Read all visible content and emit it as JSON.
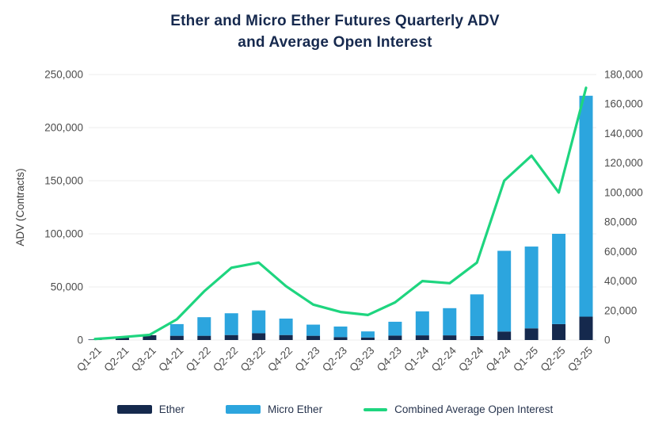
{
  "title": {
    "line1": "Ether and Micro Ether Futures Quarterly ADV",
    "line2": "and Average Open Interest"
  },
  "colors": {
    "navy": "#15294d",
    "light_blue": "#2ca5de",
    "green": "#1ed57f",
    "grid": "#ececec",
    "tick_text": "#4d4d4d",
    "title_text": "#16294e"
  },
  "legend": {
    "items": [
      {
        "label": "Ether",
        "swatch": "bar",
        "color": "#15294d"
      },
      {
        "label": "Micro Ether",
        "swatch": "bar",
        "color": "#2ca5de"
      },
      {
        "label": "Combined Average Open Interest",
        "swatch": "line",
        "color": "#1ed57f"
      }
    ]
  },
  "chart_data": {
    "type": "bar+line combo (stacked bars, dual axis)",
    "title": "Ether and Micro Ether Futures Quarterly ADV and Average Open Interest",
    "categories": [
      "Q1-21",
      "Q2-21",
      "Q3-21",
      "Q4-21",
      "Q1-22",
      "Q2-22",
      "Q3-22",
      "Q4-22",
      "Q1-23",
      "Q2-23",
      "Q3-23",
      "Q4-23",
      "Q1-24",
      "Q2-24",
      "Q3-24",
      "Q4-24",
      "Q1-25",
      "Q2-25",
      "Q3-25"
    ],
    "left_axis": {
      "label": "ADV (Contracts)",
      "min": 0,
      "max": 250000,
      "step": 50000,
      "ticks": [
        "0",
        "50,000",
        "100,000",
        "150,000",
        "200,000",
        "250,000"
      ]
    },
    "right_axis": {
      "min": 0,
      "max": 180000,
      "step": 20000,
      "ticks": [
        "0",
        "20,000",
        "40,000",
        "60,000",
        "80,000",
        "100,000",
        "120,000",
        "140,000",
        "160,000",
        "180,000"
      ]
    },
    "grid": true,
    "legend_position": "bottom",
    "series": [
      {
        "name": "Ether",
        "type": "bar",
        "stack": "adv",
        "axis": "left",
        "color": "#15294d",
        "values": [
          500,
          3000,
          4500,
          4000,
          4000,
          4700,
          6400,
          4700,
          4000,
          2700,
          2400,
          4200,
          4400,
          4400,
          3800,
          8000,
          11000,
          15000,
          22000
        ]
      },
      {
        "name": "Micro Ether",
        "type": "bar",
        "stack": "adv",
        "axis": "left",
        "color": "#2ca5de",
        "values": [
          0,
          0,
          0,
          11000,
          17500,
          20500,
          21500,
          15500,
          10500,
          10000,
          5700,
          13000,
          22600,
          25600,
          39200,
          76000,
          77000,
          85000,
          208000
        ]
      },
      {
        "name": "Combined Average Open Interest",
        "type": "line",
        "axis": "right",
        "color": "#1ed57f",
        "values": [
          700,
          2000,
          3500,
          14000,
          33000,
          49000,
          52500,
          36500,
          24000,
          19000,
          17000,
          25500,
          40000,
          38500,
          52500,
          108000,
          125000,
          100000,
          171000
        ]
      }
    ]
  }
}
